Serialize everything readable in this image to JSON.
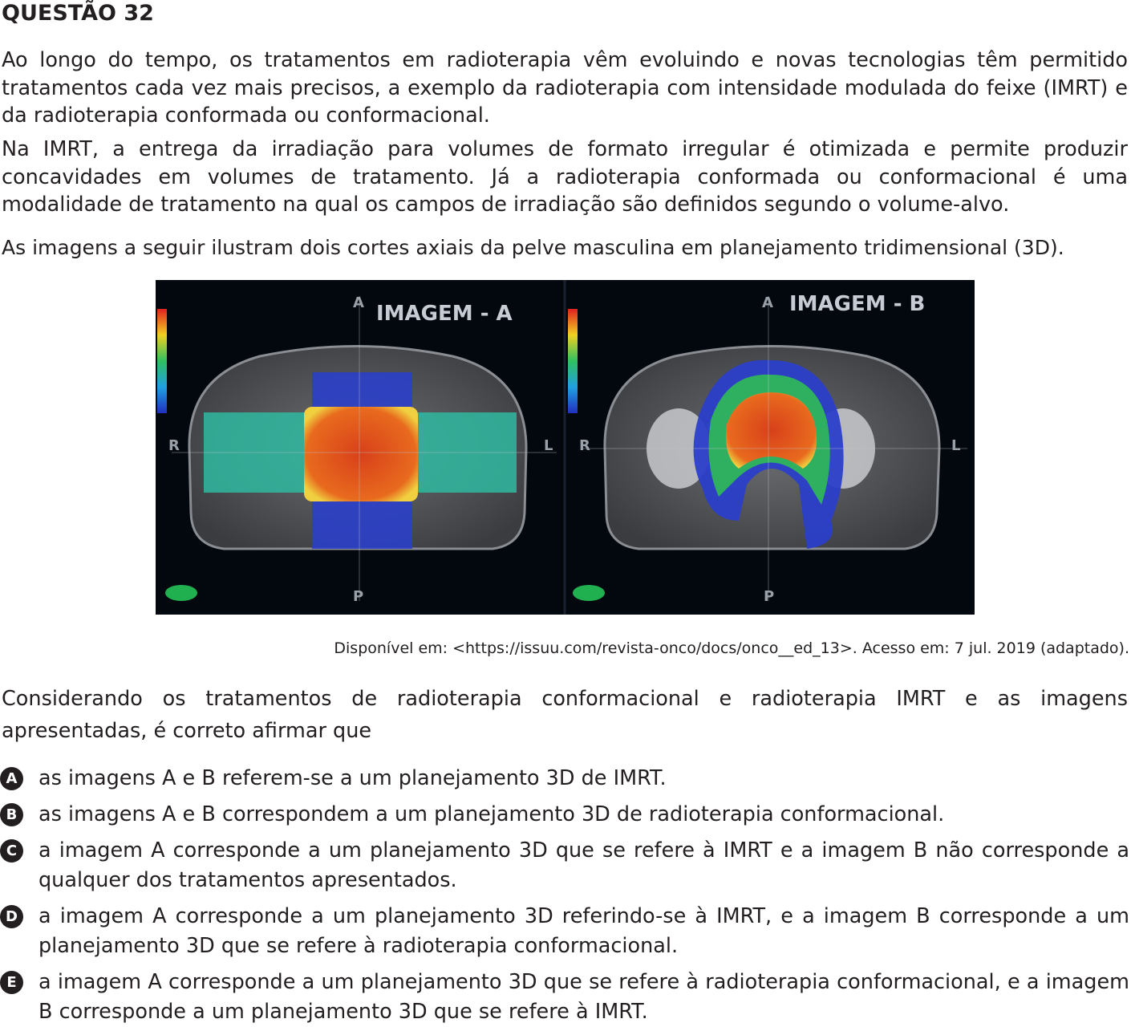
{
  "question": {
    "title": "QUESTÃO 32",
    "paragraph1": "Ao longo do tempo, os tratamentos em radioterapia vêm evoluindo e novas tecnologias têm permitido tratamentos cada vez mais precisos, a exemplo da radioterapia com intensidade modulada do feixe (IMRT) e da radioterapia conformada ou conformacional.",
    "paragraph2": "Na IMRT, a entrega da irradiação para volumes de formato irregular é otimizada e permite produzir concavidades em volumes de tratamento. Já a radioterapia conformada ou conformacional é uma modalidade de tratamento na qual os campos de irradiação são definidos segundo o volume-alvo.",
    "paragraph3": "As imagens a seguir ilustram dois cortes axiais da pelve masculina em planejamento tridimensional (3D).",
    "paragraph4": "Considerando os tratamentos de radioterapia conformacional e radioterapia IMRT e as imagens apresentadas, é correto afirmar que"
  },
  "figure": {
    "image_a_label": "IMAGEM - A",
    "image_b_label": "IMAGEM - B",
    "directions": {
      "anterior": "A",
      "posterior": "P",
      "right": "R",
      "left": "L"
    },
    "caption": "Disponível em: <https://issuu.com/revista-onco/docs/onco__ed_13>. Acesso em: 7 jul. 2019 (adaptado)."
  },
  "options": [
    {
      "letter": "A",
      "text": "as imagens A e B referem-se a um planejamento 3D de IMRT."
    },
    {
      "letter": "B",
      "text": "as imagens A e B correspondem a um planejamento 3D de radioterapia conformacional."
    },
    {
      "letter": "C",
      "text": "a imagem A corresponde a um planejamento 3D que se refere à IMRT e a imagem B não corresponde a qualquer dos tratamentos apresentados."
    },
    {
      "letter": "D",
      "text": "a imagem A corresponde a um planejamento 3D referindo-se à IMRT, e a imagem B corresponde a um planejamento 3D que se refere à radioterapia conformacional."
    },
    {
      "letter": "E",
      "text": "a imagem A corresponde a um planejamento 3D que se refere à radioterapia conformacional, e a imagem B corresponde a um planejamento 3D que se refere à IMRT."
    }
  ],
  "colors": {
    "text": "#231f20",
    "figure_background": "#03080f",
    "dose_high": "#e0461a",
    "dose_mid": "#2fb8a0",
    "dose_low": "#2b3fc9"
  }
}
